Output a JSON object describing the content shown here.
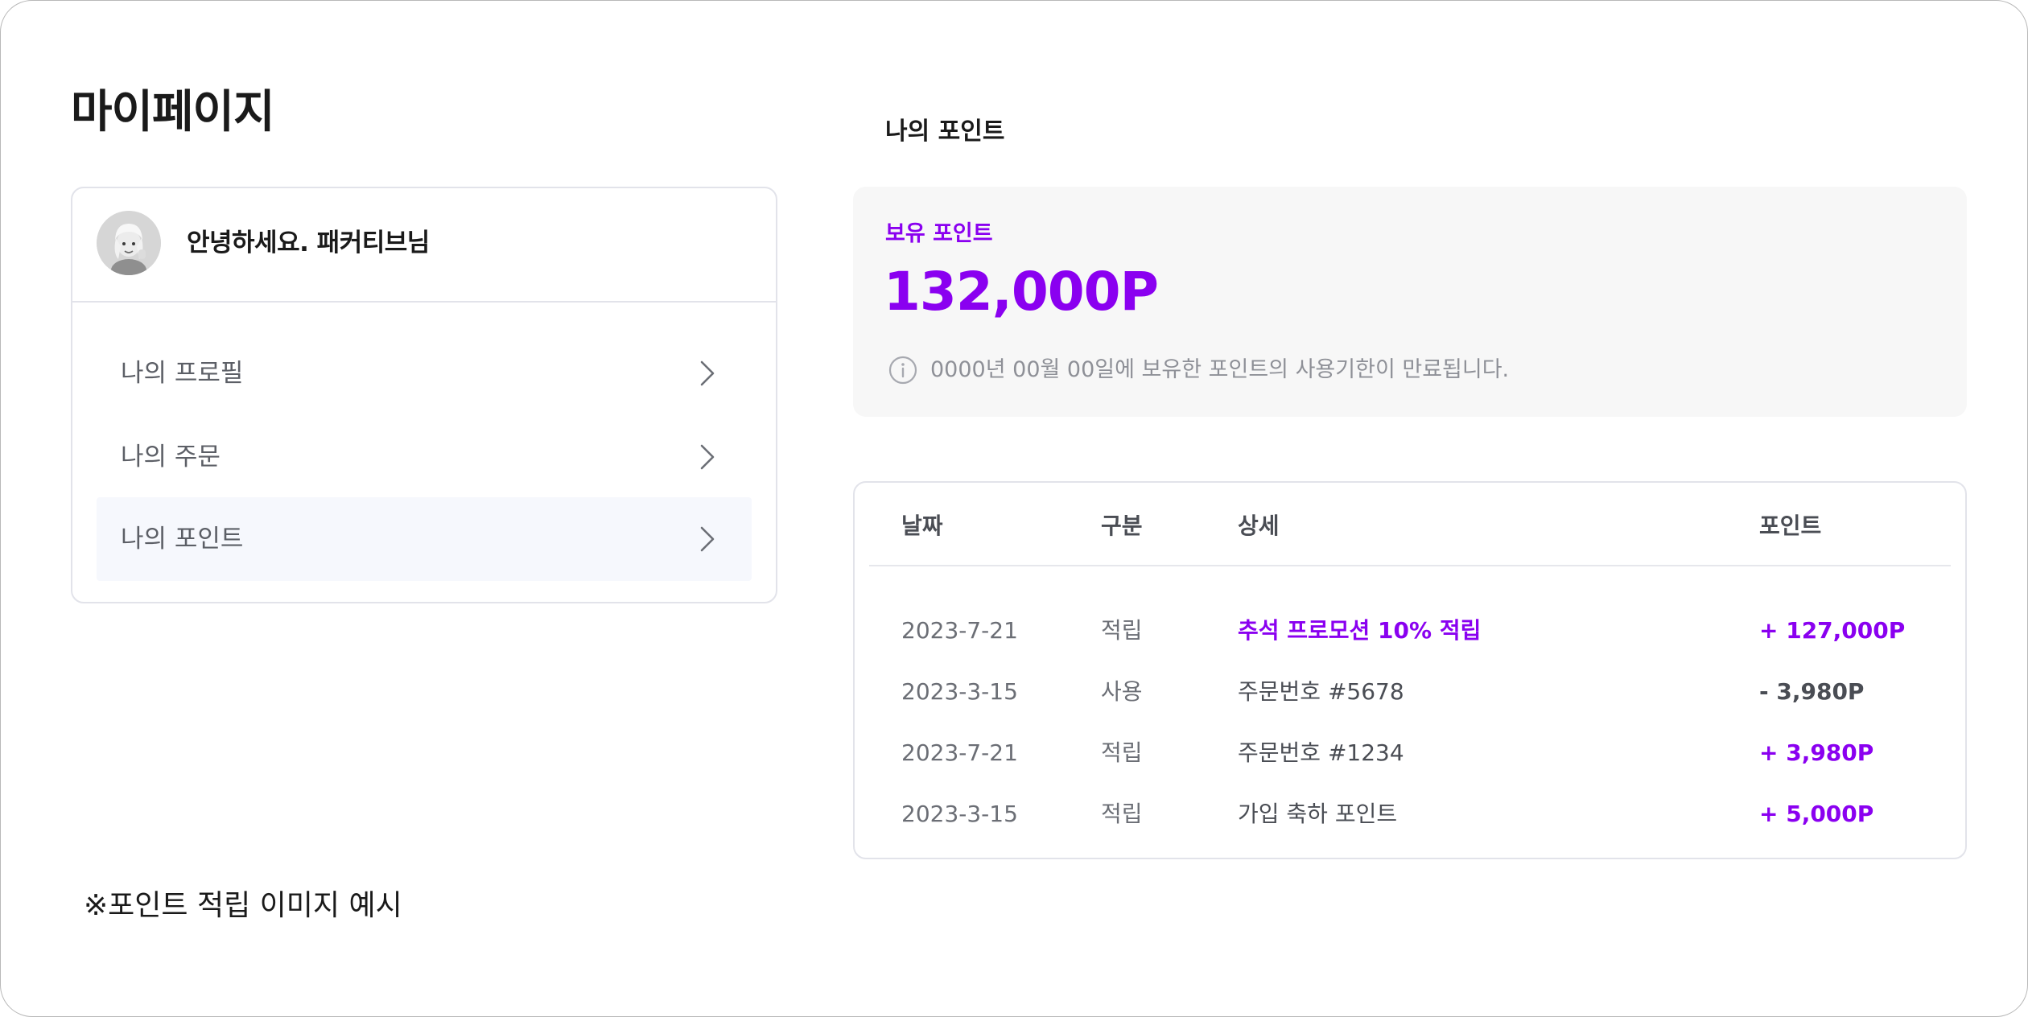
{
  "page": {
    "title": "마이페이지",
    "footnote": "※포인트 적립 이미지 예시"
  },
  "profile": {
    "greeting": "안녕하세요. 패커티브님",
    "avatar_icon": "memoji-avatar-icon"
  },
  "menu": {
    "items": [
      {
        "label": "나의 프로필",
        "active": false
      },
      {
        "label": "나의 주문",
        "active": false
      },
      {
        "label": "나의 포인트",
        "active": true
      }
    ]
  },
  "points": {
    "section_title": "나의 포인트",
    "label": "보유 포인트",
    "value": "132,000P",
    "notice": "0000년 00월 00일에 보유한 포인트의 사용기한이 만료됩니다."
  },
  "history": {
    "headers": {
      "date": "날짜",
      "type": "구분",
      "detail": "상세",
      "points": "포인트"
    },
    "rows": [
      {
        "date": "2023-7-21",
        "type": "적립",
        "detail": "추석 프로모션 10% 적립",
        "points": "+ 127,000P"
      },
      {
        "date": "2023-3-15",
        "type": "사용",
        "detail": "주문번호 #5678",
        "points": "- 3,980P"
      },
      {
        "date": "2023-7-21",
        "type": "적립",
        "detail": "주문번호 #1234",
        "points": "+ 3,980P"
      },
      {
        "date": "2023-3-15",
        "type": "적립",
        "detail": "가입 축하 포인트",
        "points": "+ 5,000P"
      }
    ]
  },
  "colors": {
    "accent": "#8a00f0",
    "border": "#e2e3ea",
    "muted_text": "#8e9097",
    "panel_bg": "#f7f7f7",
    "active_item_bg": "#f6f8fd"
  }
}
